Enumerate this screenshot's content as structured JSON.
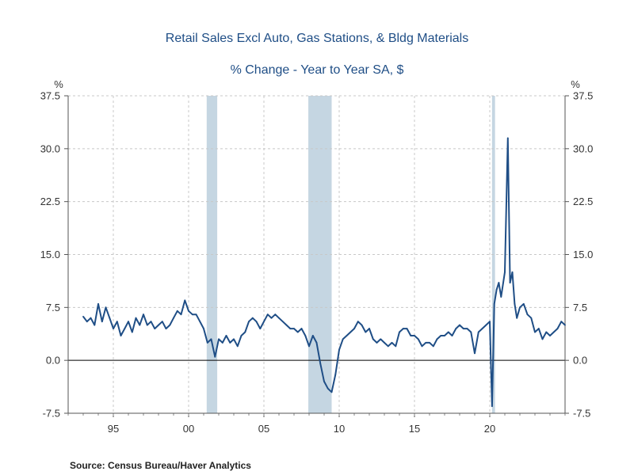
{
  "chart_data": {
    "type": "line",
    "title": "Retail Sales Excl Auto, Gas Stations, & Bldg Materials",
    "subtitle": "% Change - Year to Year    SA, $",
    "ylabel_left": "%",
    "ylabel_right": "%",
    "xlim": [
      1992.0,
      2025.0
    ],
    "ylim": [
      -7.5,
      37.5
    ],
    "y_ticks": [
      -7.5,
      0.0,
      7.5,
      15.0,
      22.5,
      30.0,
      37.5
    ],
    "y_tick_labels": [
      "-7.5",
      "0.0",
      "7.5",
      "15.0",
      "22.5",
      "30.0",
      "37.5"
    ],
    "x_ticks": [
      1995,
      2000,
      2005,
      2010,
      2015,
      2020
    ],
    "x_tick_labels": [
      "95",
      "00",
      "05",
      "10",
      "15",
      "20"
    ],
    "grid": true,
    "recessions": [
      [
        2001.2,
        2001.9
      ],
      [
        2007.95,
        2009.5
      ],
      [
        2020.15,
        2020.35
      ]
    ],
    "series": [
      {
        "name": "Retail Sales Excl Auto, Gas Stations, & Bldg Materials",
        "color": "#1f4e86",
        "x": [
          1993.0,
          1993.25,
          1993.5,
          1993.75,
          1994.0,
          1994.25,
          1994.5,
          1994.75,
          1995.0,
          1995.25,
          1995.5,
          1995.75,
          1996.0,
          1996.25,
          1996.5,
          1996.75,
          1997.0,
          1997.25,
          1997.5,
          1997.75,
          1998.0,
          1998.25,
          1998.5,
          1998.75,
          1999.0,
          1999.25,
          1999.5,
          1999.75,
          2000.0,
          2000.25,
          2000.5,
          2000.75,
          2001.0,
          2001.25,
          2001.5,
          2001.75,
          2002.0,
          2002.25,
          2002.5,
          2002.75,
          2003.0,
          2003.25,
          2003.5,
          2003.75,
          2004.0,
          2004.25,
          2004.5,
          2004.75,
          2005.0,
          2005.25,
          2005.5,
          2005.75,
          2006.0,
          2006.25,
          2006.5,
          2006.75,
          2007.0,
          2007.25,
          2007.5,
          2007.75,
          2008.0,
          2008.25,
          2008.5,
          2008.75,
          2009.0,
          2009.25,
          2009.5,
          2009.75,
          2010.0,
          2010.25,
          2010.5,
          2010.75,
          2011.0,
          2011.25,
          2011.5,
          2011.75,
          2012.0,
          2012.25,
          2012.5,
          2012.75,
          2013.0,
          2013.25,
          2013.5,
          2013.75,
          2014.0,
          2014.25,
          2014.5,
          2014.75,
          2015.0,
          2015.25,
          2015.5,
          2015.75,
          2016.0,
          2016.25,
          2016.5,
          2016.75,
          2017.0,
          2017.25,
          2017.5,
          2017.75,
          2018.0,
          2018.25,
          2018.5,
          2018.75,
          2019.0,
          2019.25,
          2019.5,
          2019.75,
          2020.0,
          2020.15,
          2020.3,
          2020.45,
          2020.6,
          2020.75,
          2021.0,
          2021.2,
          2021.35,
          2021.5,
          2021.65,
          2021.8,
          2022.0,
          2022.25,
          2022.5,
          2022.75,
          2023.0,
          2023.25,
          2023.5,
          2023.75,
          2024.0,
          2024.25,
          2024.5,
          2024.75,
          2025.0
        ],
        "y": [
          6.2,
          5.5,
          6.0,
          5.0,
          8.0,
          5.5,
          7.5,
          6.0,
          4.5,
          5.5,
          3.5,
          4.5,
          5.5,
          4.0,
          6.0,
          5.0,
          6.5,
          5.0,
          5.5,
          4.5,
          5.0,
          5.5,
          4.5,
          5.0,
          6.0,
          7.0,
          6.5,
          8.5,
          7.0,
          6.5,
          6.5,
          5.5,
          4.5,
          2.5,
          3.0,
          0.5,
          3.0,
          2.5,
          3.5,
          2.5,
          3.0,
          2.0,
          3.5,
          4.0,
          5.5,
          6.0,
          5.5,
          4.5,
          5.5,
          6.5,
          6.0,
          6.5,
          6.0,
          5.5,
          5.0,
          4.5,
          4.5,
          4.0,
          4.5,
          3.5,
          2.0,
          3.5,
          2.5,
          -0.5,
          -3.0,
          -4.0,
          -4.5,
          -2.0,
          1.5,
          3.0,
          3.5,
          4.0,
          4.5,
          5.5,
          5.0,
          4.0,
          4.5,
          3.0,
          2.5,
          3.0,
          2.5,
          2.0,
          2.5,
          2.0,
          4.0,
          4.5,
          4.5,
          3.5,
          3.5,
          3.0,
          2.0,
          2.5,
          2.5,
          2.0,
          3.0,
          3.5,
          3.5,
          4.0,
          3.5,
          4.5,
          5.0,
          4.5,
          4.5,
          4.0,
          1.0,
          4.0,
          4.5,
          5.0,
          5.5,
          -6.5,
          8.0,
          10.0,
          11.0,
          9.0,
          12.5,
          31.5,
          11.0,
          12.5,
          8.0,
          6.0,
          7.5,
          8.0,
          6.5,
          6.0,
          4.0,
          4.5,
          3.0,
          4.0,
          3.5,
          4.0,
          4.5,
          5.5,
          5.0
        ]
      }
    ]
  },
  "source": "Source:  Census Bureau/Haver Analytics"
}
